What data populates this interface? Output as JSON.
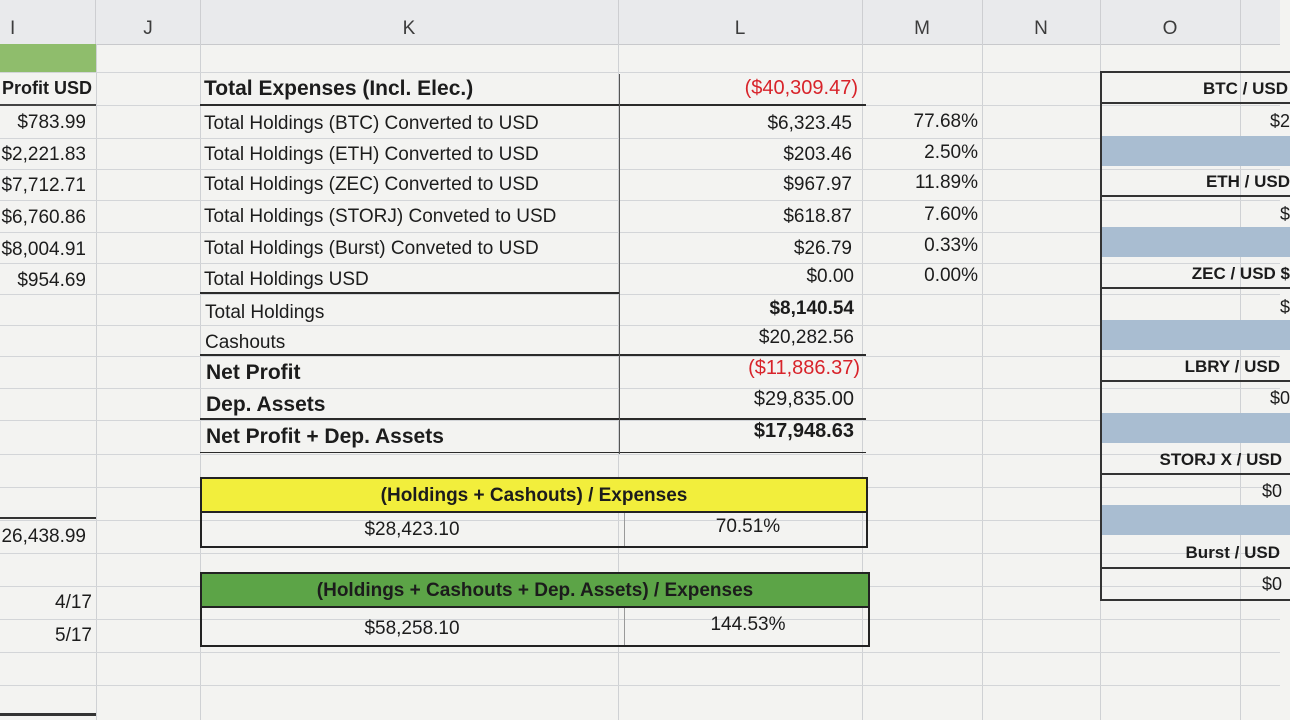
{
  "columns": [
    "I",
    "J",
    "K",
    "L",
    "M",
    "N",
    "O"
  ],
  "i_column": {
    "header": "Profit USD",
    "values": [
      "$783.99",
      "$2,221.83",
      "$7,712.71",
      "$6,760.86",
      "$8,004.91",
      "$954.69"
    ],
    "total": "26,438.99",
    "dates": [
      "4/17",
      "5/17"
    ]
  },
  "summary": {
    "expenses_label": "Total Expenses (Incl. Elec.)",
    "expenses_value": "($40,309.47)",
    "holdings": [
      {
        "label": "Total Holdings (BTC) Converted to USD",
        "value": "$6,323.45",
        "pct": "77.68%"
      },
      {
        "label": "Total Holdings (ETH) Converted to USD",
        "value": "$203.46",
        "pct": "2.50%"
      },
      {
        "label": "Total Holdings (ZEC) Converted to USD",
        "value": "$967.97",
        "pct": "11.89%"
      },
      {
        "label": "Total Holdings (STORJ) Conveted to USD",
        "value": "$618.87",
        "pct": "7.60%"
      },
      {
        "label": "Total Holdings (Burst) Conveted to USD",
        "value": "$26.79",
        "pct": "0.33%"
      },
      {
        "label": "Total Holdings USD",
        "value": "$0.00",
        "pct": "0.00%"
      }
    ],
    "total_holdings_label": "Total Holdings",
    "total_holdings_value": "$8,140.54",
    "cashouts_label": "Cashouts",
    "cashouts_value": "$20,282.56",
    "net_profit_label": "Net Profit",
    "net_profit_value": "($11,886.37)",
    "dep_assets_label": "Dep. Assets",
    "dep_assets_value": "$29,835.00",
    "net_plus_dep_label": "Net Profit + Dep. Assets",
    "net_plus_dep_value": "$17,948.63"
  },
  "ratio_box_1": {
    "title": "(Holdings + Cashouts) / Expenses",
    "amount": "$28,423.10",
    "pct": "70.51%",
    "color": "#f2ee3c"
  },
  "ratio_box_2": {
    "title": "(Holdings + Cashouts + Dep. Assets) / Expenses",
    "amount": "$58,258.10",
    "pct": "144.53%",
    "color": "#5ca447"
  },
  "o_panel": {
    "items": [
      {
        "label": "BTC / USD",
        "value": "$2"
      },
      {
        "label": "ETH / USD",
        "value": "$"
      },
      {
        "label": "ZEC / USD $",
        "value": "$"
      },
      {
        "label": "LBRY / USD",
        "value": "$0"
      },
      {
        "label": "STORJ X / USD",
        "value": "$0"
      },
      {
        "label": "Burst / USD",
        "value": "$0"
      }
    ],
    "band_color": "#a9bdd1"
  }
}
